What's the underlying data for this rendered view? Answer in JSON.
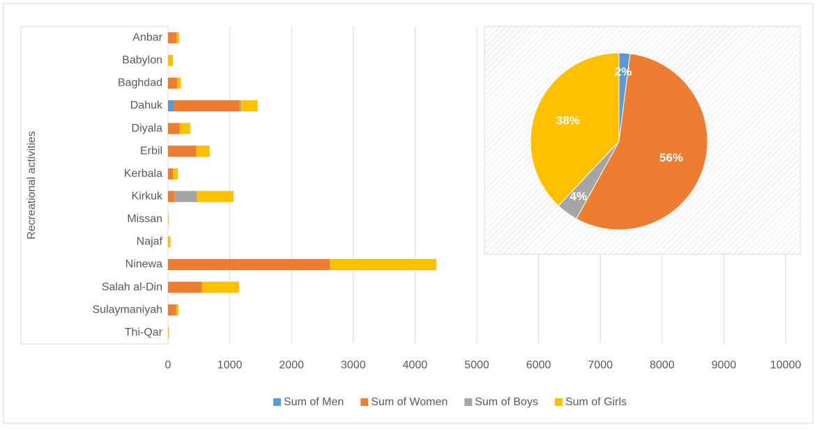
{
  "chart_data": [
    {
      "type": "bar",
      "orientation": "horizontal",
      "stacked": true,
      "y_label": "Recreational activities",
      "categories": [
        "Anbar",
        "Babylon",
        "Baghdad",
        "Dahuk",
        "Diyala",
        "Erbil",
        "Kerbala",
        "Kirkuk",
        "Missan",
        "Najaf",
        "Ninewa",
        "Salah al-Din",
        "Sulaymaniyah",
        "Thi-Qar"
      ],
      "series": [
        {
          "name": "Sum of Men",
          "color": "#5b9bd5",
          "values": [
            0,
            0,
            0,
            90,
            0,
            0,
            0,
            0,
            0,
            0,
            0,
            0,
            0,
            0
          ]
        },
        {
          "name": "Sum of Women",
          "color": "#ed7d31",
          "values": [
            140,
            0,
            150,
            1070,
            190,
            460,
            80,
            110,
            0,
            0,
            2620,
            550,
            130,
            0
          ]
        },
        {
          "name": "Sum of Boys",
          "color": "#a5a5a5",
          "values": [
            0,
            0,
            0,
            20,
            0,
            0,
            0,
            360,
            0,
            0,
            0,
            0,
            0,
            0
          ]
        },
        {
          "name": "Sum of Girls",
          "color": "#ffc000",
          "values": [
            40,
            80,
            60,
            270,
            170,
            215,
            80,
            590,
            10,
            40,
            1725,
            600,
            40,
            15
          ]
        }
      ],
      "xlim": [
        0,
        10000
      ],
      "xticks": [
        0,
        1000,
        2000,
        3000,
        4000,
        5000,
        6000,
        7000,
        8000,
        9000,
        10000
      ],
      "grid": true,
      "legend": "bottom"
    },
    {
      "type": "pie",
      "values": [
        2,
        56,
        4,
        38
      ],
      "value_labels": [
        "2%",
        "56%",
        "4%",
        "38%"
      ],
      "colors": [
        "#5b9bd5",
        "#ed7d31",
        "#a5a5a5",
        "#ffc000"
      ]
    }
  ]
}
